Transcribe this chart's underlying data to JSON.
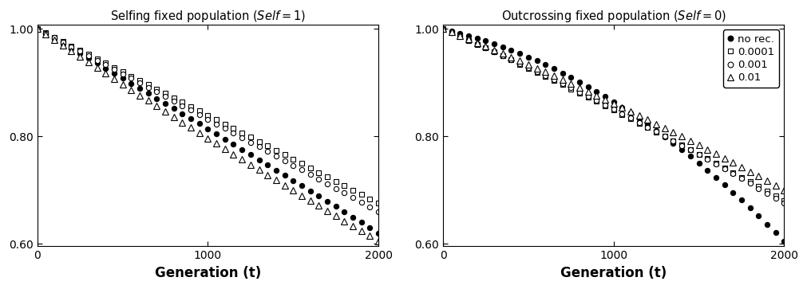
{
  "left_title": "Selfing fixed population ($\\it{Self}=1$)",
  "right_title": "Outcrossing fixed population ($\\it{Self}=0$)",
  "xlabel": "Generation (t)",
  "xlim": [
    0,
    2000
  ],
  "ylim": [
    0.595,
    1.008
  ],
  "yticks": [
    0.6,
    0.8,
    1.0
  ],
  "xticks": [
    0,
    1000,
    2000
  ],
  "n_points": 41,
  "background_color": "#ffffff",
  "series": [
    {
      "label": "no rec.",
      "marker": "o",
      "filled": true
    },
    {
      "label": "0.0001",
      "marker": "s",
      "filled": false
    },
    {
      "label": "0.001",
      "marker": "o",
      "filled": false
    },
    {
      "label": "0.01",
      "marker": "^",
      "filled": false
    }
  ]
}
